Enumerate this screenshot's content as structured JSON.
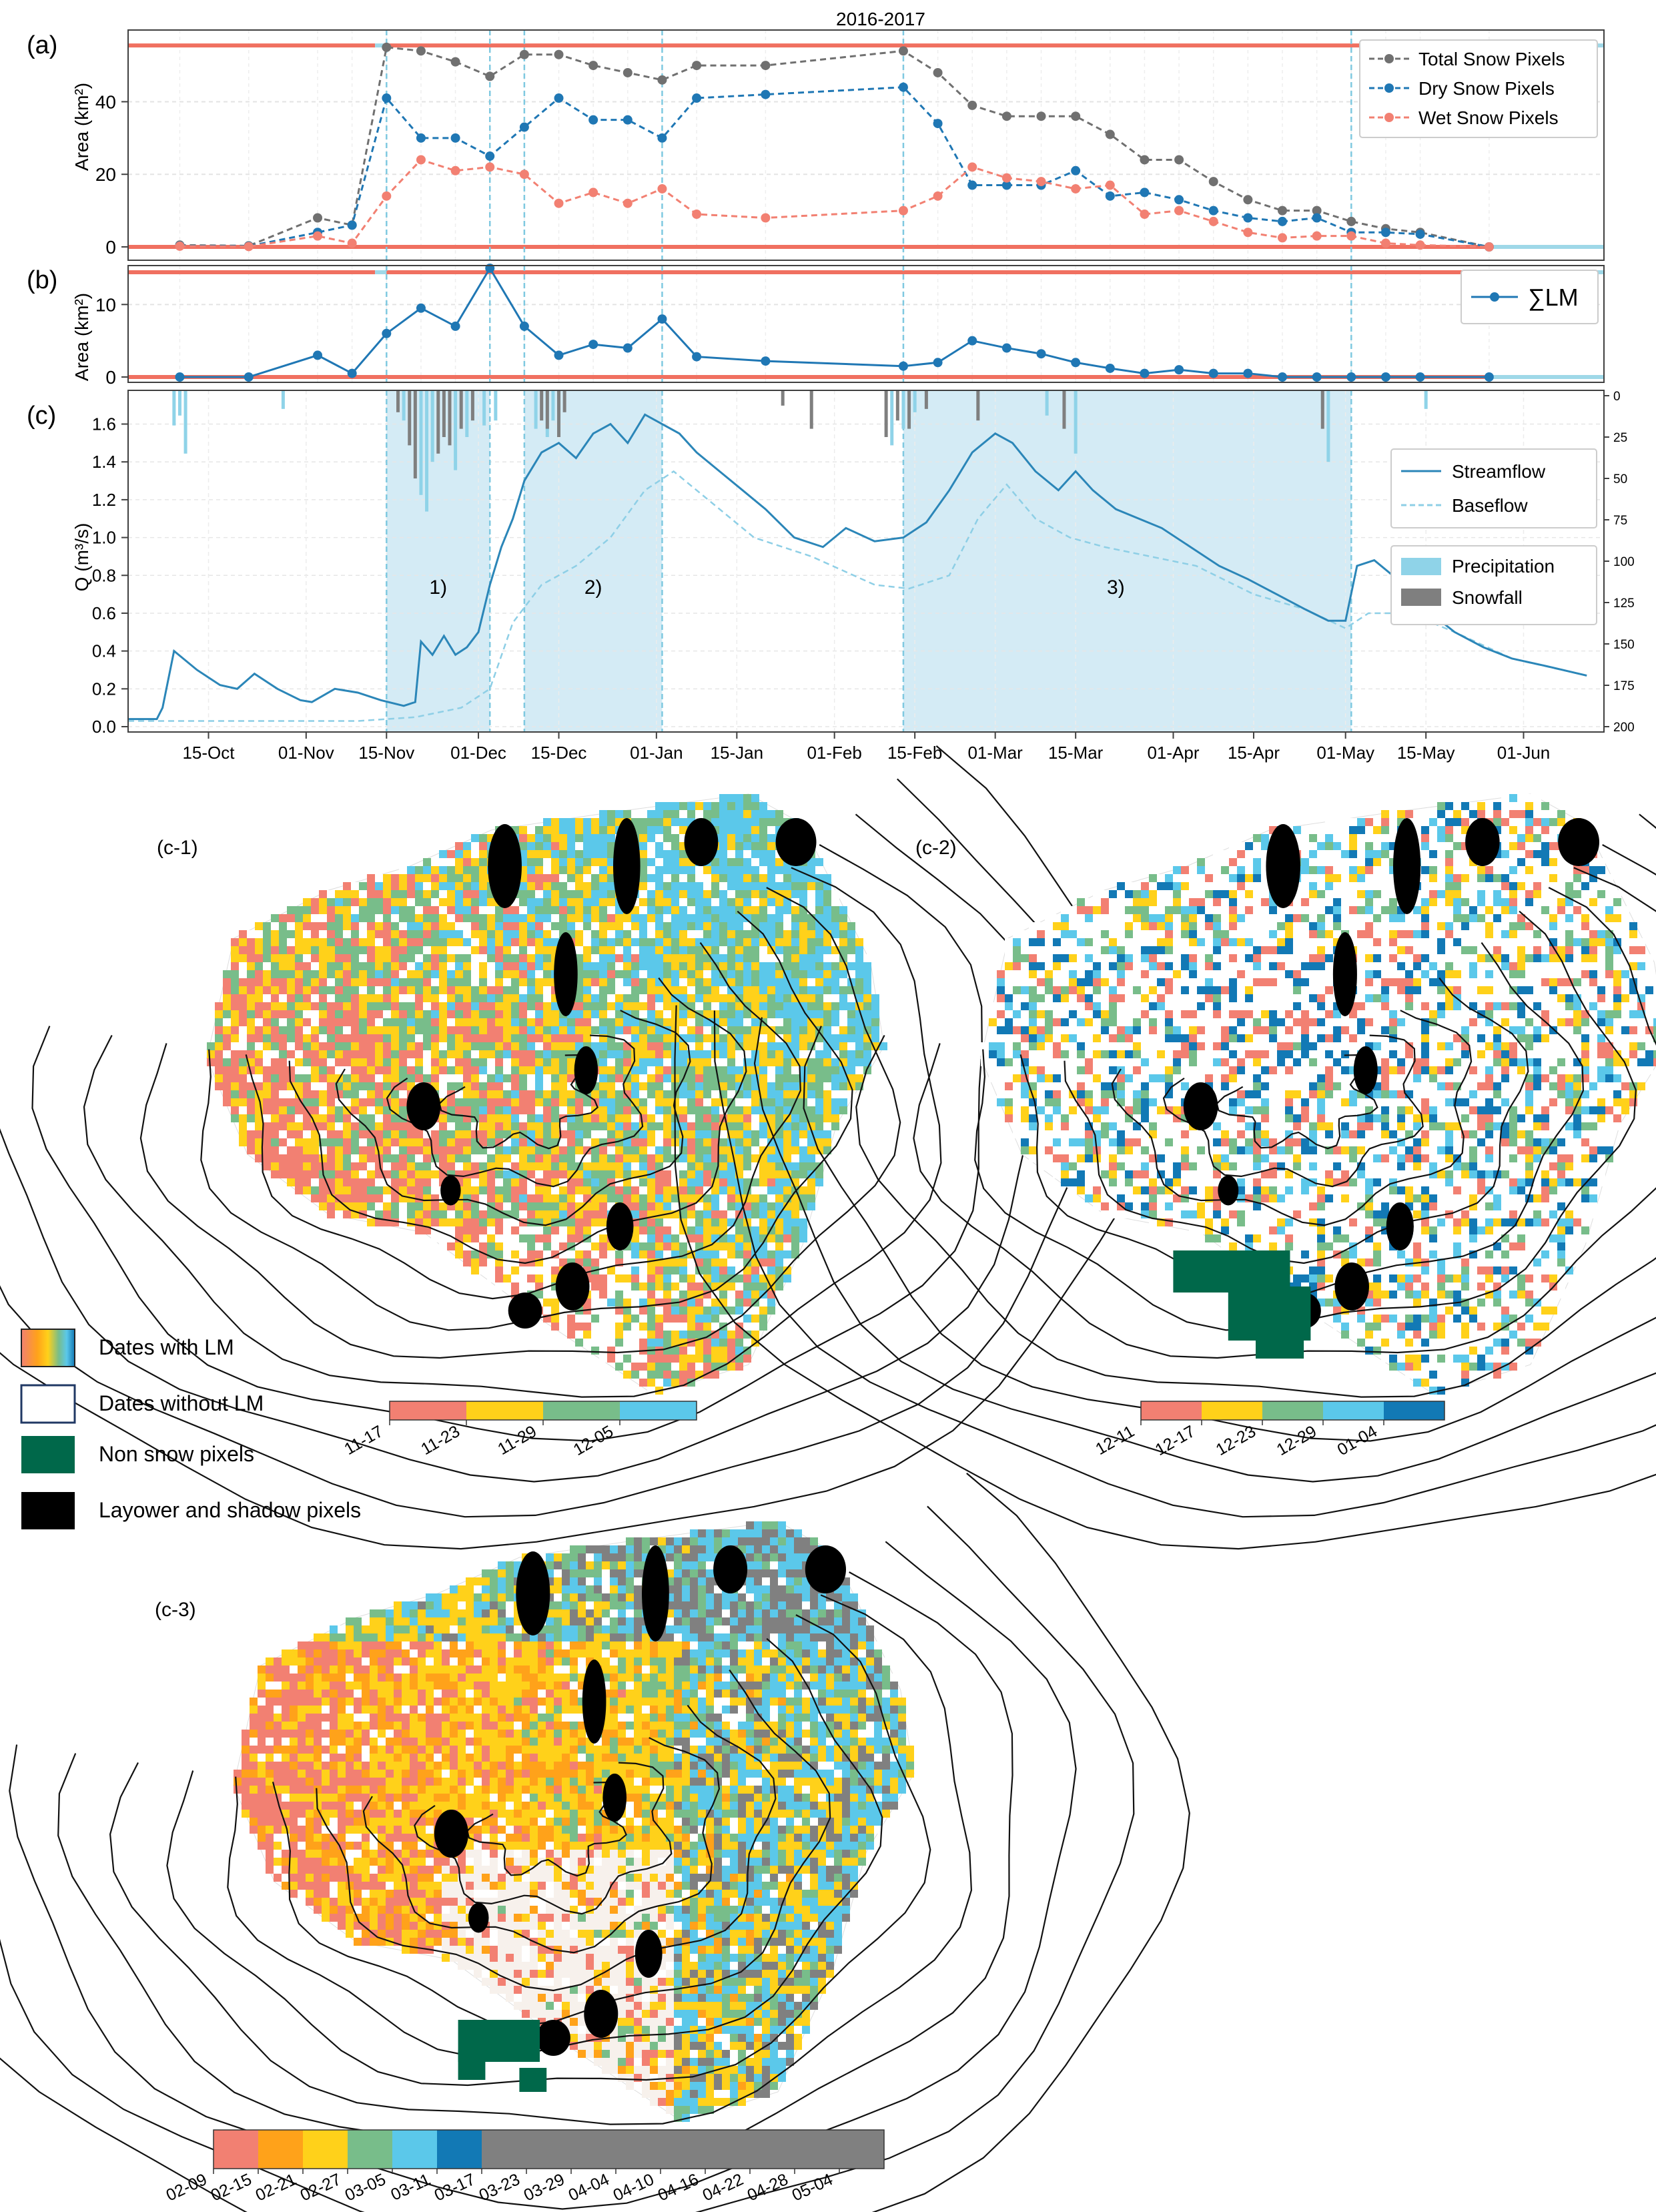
{
  "figure": {
    "title": "2016-2017",
    "panel_labels": [
      "(a)",
      "(b)",
      "(c)"
    ],
    "map_labels": [
      "(c-1)",
      "(c-2)",
      "(c-3)"
    ],
    "period_labels": [
      "1)",
      "2)",
      "3)"
    ]
  },
  "colors": {
    "total": "#707070",
    "dry": "#1f77b4",
    "wet": "#f28072",
    "red_bar": "#f07060",
    "cyan_bar": "#9fd8e8",
    "shade": "#cde8f3",
    "vline": "#7fc9e0",
    "precip": "#8fd3e8",
    "snowfall": "#7f7f7f",
    "streamflow": "#2b86b8",
    "baseflow": "#8ecfe6",
    "non_snow": "#00684a",
    "layover": "#000000"
  },
  "chart_data": [
    {
      "type": "line",
      "panel": "(a)",
      "title": "2016-2017",
      "ylabel": "Area (km²)",
      "ylim": [
        0,
        57
      ],
      "yticks": [
        0,
        20,
        40
      ],
      "grid": true,
      "legend_position": "top-right",
      "x": [
        "2016-10-10",
        "2016-10-22",
        "2016-11-03",
        "2016-11-09",
        "2016-11-15",
        "2016-11-21",
        "2016-11-27",
        "2016-12-03",
        "2016-12-09",
        "2016-12-15",
        "2016-12-21",
        "2016-12-27",
        "2017-01-02",
        "2017-01-08",
        "2017-01-20",
        "2017-02-13",
        "2017-02-19",
        "2017-02-25",
        "2017-03-03",
        "2017-03-09",
        "2017-03-15",
        "2017-03-21",
        "2017-03-27",
        "2017-04-02",
        "2017-04-08",
        "2017-04-14",
        "2017-04-20",
        "2017-04-26",
        "2017-05-02",
        "2017-05-08",
        "2017-05-14",
        "2017-05-26"
      ],
      "series": [
        {
          "name": "Total Snow Pixels",
          "values": [
            0.5,
            0.3,
            8,
            6,
            55,
            54,
            51,
            47,
            53,
            53,
            50,
            48,
            46,
            50,
            50,
            54,
            48,
            39,
            36,
            36,
            36,
            31,
            24,
            24,
            18,
            13,
            10,
            10,
            7,
            5,
            4,
            0
          ]
        },
        {
          "name": "Dry Snow Pixels",
          "values": [
            0.3,
            0.2,
            4,
            6,
            41,
            30,
            30,
            25,
            33,
            41,
            35,
            35,
            30,
            41,
            42,
            44,
            34,
            17,
            17,
            17,
            21,
            14,
            15,
            13,
            10,
            8,
            7,
            8,
            4,
            4,
            3.5,
            0
          ]
        },
        {
          "name": "Wet Snow Pixels",
          "values": [
            0.2,
            0.1,
            3,
            1,
            14,
            24,
            21,
            22,
            20,
            12,
            15,
            12,
            16,
            9,
            8,
            10,
            14,
            22,
            19,
            18,
            16,
            17,
            9,
            10,
            7,
            4,
            2.5,
            3,
            3,
            1,
            0.5,
            0
          ]
        }
      ]
    },
    {
      "type": "line",
      "panel": "(b)",
      "ylabel": "Area (km²)",
      "ylim": [
        0,
        15
      ],
      "yticks": [
        0,
        10
      ],
      "grid": true,
      "legend_position": "top-right",
      "x": [
        "2016-10-10",
        "2016-10-22",
        "2016-11-03",
        "2016-11-09",
        "2016-11-15",
        "2016-11-21",
        "2016-11-27",
        "2016-12-03",
        "2016-12-09",
        "2016-12-15",
        "2016-12-21",
        "2016-12-27",
        "2017-01-02",
        "2017-01-08",
        "2017-01-20",
        "2017-02-13",
        "2017-02-19",
        "2017-02-25",
        "2017-03-03",
        "2017-03-09",
        "2017-03-15",
        "2017-03-21",
        "2017-03-27",
        "2017-04-02",
        "2017-04-08",
        "2017-04-14",
        "2017-04-20",
        "2017-04-26",
        "2017-05-02",
        "2017-05-08",
        "2017-05-14",
        "2017-05-26"
      ],
      "series": [
        {
          "name": "∑LM",
          "values": [
            0,
            0,
            3,
            0.5,
            6,
            9.5,
            7,
            15,
            7,
            3,
            4.5,
            4,
            8,
            2.8,
            2.2,
            1.5,
            2,
            5,
            4,
            3.2,
            2,
            1.2,
            0.5,
            1,
            0.5,
            0.5,
            0,
            0,
            0,
            0,
            0,
            0
          ]
        }
      ]
    },
    {
      "type": "line",
      "panel": "(c)",
      "ylabel": "Q (m³/s)",
      "ylim": [
        0,
        1.75
      ],
      "yticks": [
        0.0,
        0.2,
        0.4,
        0.6,
        0.8,
        1.0,
        1.2,
        1.4,
        1.6
      ],
      "y2ticks": [
        0,
        25,
        50,
        75,
        100,
        125,
        150,
        175,
        200
      ],
      "y2lim": [
        0,
        200
      ],
      "xtick_labels": [
        "15-Oct",
        "01-Nov",
        "15-Nov",
        "01-Dec",
        "15-Dec",
        "01-Jan",
        "15-Jan",
        "01-Feb",
        "15-Feb",
        "01-Mar",
        "15-Mar",
        "01-Apr",
        "15-Apr",
        "01-May",
        "15-May",
        "01-Jun"
      ],
      "xtick_dates": [
        "2016-10-15",
        "2016-11-01",
        "2016-11-15",
        "2016-12-01",
        "2016-12-15",
        "2017-01-01",
        "2017-01-15",
        "2017-02-01",
        "2017-02-15",
        "2017-03-01",
        "2017-03-15",
        "2017-04-01",
        "2017-04-15",
        "2017-05-01",
        "2017-05-15",
        "2017-06-01"
      ],
      "xlim": [
        "2016-10-01",
        "2017-06-15"
      ],
      "shaded_periods": [
        {
          "label": "1)",
          "start": "2016-11-15",
          "end": "2016-12-03"
        },
        {
          "label": "2)",
          "start": "2016-12-09",
          "end": "2017-01-02"
        },
        {
          "label": "3)",
          "start": "2017-02-13",
          "end": "2017-05-02"
        }
      ],
      "series": [
        {
          "name": "Streamflow",
          "x": [
            "2016-10-01",
            "2016-10-06",
            "2016-10-07",
            "2016-10-09",
            "2016-10-13",
            "2016-10-17",
            "2016-10-20",
            "2016-10-23",
            "2016-10-27",
            "2016-10-31",
            "2016-11-02",
            "2016-11-06",
            "2016-11-10",
            "2016-11-14",
            "2016-11-18",
            "2016-11-20",
            "2016-11-21",
            "2016-11-23",
            "2016-11-25",
            "2016-11-27",
            "2016-11-29",
            "2016-12-01",
            "2016-12-03",
            "2016-12-05",
            "2016-12-07",
            "2016-12-09",
            "2016-12-12",
            "2016-12-15",
            "2016-12-18",
            "2016-12-21",
            "2016-12-24",
            "2016-12-27",
            "2016-12-30",
            "2017-01-02",
            "2017-01-05",
            "2017-01-08",
            "2017-01-12",
            "2017-01-16",
            "2017-01-20",
            "2017-01-25",
            "2017-01-30",
            "2017-02-03",
            "2017-02-08",
            "2017-02-13",
            "2017-02-17",
            "2017-02-21",
            "2017-02-25",
            "2017-03-01",
            "2017-03-04",
            "2017-03-08",
            "2017-03-12",
            "2017-03-15",
            "2017-03-18",
            "2017-03-22",
            "2017-03-26",
            "2017-03-30",
            "2017-04-04",
            "2017-04-09",
            "2017-04-14",
            "2017-04-19",
            "2017-04-24",
            "2017-04-28",
            "2017-05-01",
            "2017-05-03",
            "2017-05-06",
            "2017-05-10",
            "2017-05-15",
            "2017-05-20",
            "2017-05-25",
            "2017-05-30",
            "2017-06-05",
            "2017-06-12"
          ],
          "values": [
            0.04,
            0.04,
            0.1,
            0.4,
            0.3,
            0.22,
            0.2,
            0.28,
            0.2,
            0.14,
            0.13,
            0.2,
            0.18,
            0.14,
            0.11,
            0.13,
            0.45,
            0.38,
            0.48,
            0.38,
            0.42,
            0.5,
            0.75,
            0.95,
            1.1,
            1.3,
            1.45,
            1.5,
            1.42,
            1.55,
            1.6,
            1.5,
            1.65,
            1.6,
            1.55,
            1.45,
            1.35,
            1.25,
            1.15,
            1.0,
            0.95,
            1.05,
            0.98,
            1.0,
            1.08,
            1.25,
            1.45,
            1.55,
            1.5,
            1.35,
            1.25,
            1.35,
            1.25,
            1.15,
            1.1,
            1.05,
            0.95,
            0.85,
            0.78,
            0.7,
            0.62,
            0.56,
            0.56,
            0.85,
            0.88,
            0.78,
            0.62,
            0.5,
            0.42,
            0.36,
            0.32,
            0.27
          ]
        },
        {
          "name": "Baseflow",
          "x": [
            "2016-10-01",
            "2016-11-10",
            "2016-11-20",
            "2016-11-28",
            "2016-12-03",
            "2016-12-07",
            "2016-12-12",
            "2016-12-18",
            "2016-12-24",
            "2016-12-30",
            "2017-01-04",
            "2017-01-10",
            "2017-01-18",
            "2017-01-28",
            "2017-02-08",
            "2017-02-14",
            "2017-02-21",
            "2017-02-26",
            "2017-03-03",
            "2017-03-08",
            "2017-03-14",
            "2017-03-20",
            "2017-03-28",
            "2017-04-05",
            "2017-04-15",
            "2017-04-24",
            "2017-05-01",
            "2017-05-05",
            "2017-05-12",
            "2017-05-20",
            "2017-05-30",
            "2017-06-12"
          ],
          "values": [
            0.03,
            0.03,
            0.05,
            0.1,
            0.2,
            0.55,
            0.75,
            0.85,
            1.0,
            1.25,
            1.35,
            1.2,
            1.0,
            0.9,
            0.75,
            0.73,
            0.8,
            1.1,
            1.28,
            1.1,
            1.0,
            0.95,
            0.9,
            0.85,
            0.7,
            0.62,
            0.52,
            0.6,
            0.6,
            0.5,
            0.36,
            0.27
          ]
        }
      ],
      "bars": [
        {
          "name": "Precipitation",
          "x": [
            "2016-10-09",
            "2016-10-10",
            "2016-10-11",
            "2016-10-28",
            "2016-11-18",
            "2016-11-21",
            "2016-11-22",
            "2016-11-23",
            "2016-11-27",
            "2016-11-29",
            "2016-12-02",
            "2016-12-04",
            "2016-12-11",
            "2016-12-13",
            "2016-12-14",
            "2016-12-15",
            "2017-02-11",
            "2017-02-13",
            "2017-02-15",
            "2017-03-10",
            "2017-03-15",
            "2017-04-27",
            "2017-04-28",
            "2017-05-15"
          ],
          "values": [
            18,
            12,
            35,
            8,
            15,
            60,
            70,
            40,
            45,
            25,
            18,
            15,
            20,
            25,
            15,
            10,
            30,
            20,
            10,
            12,
            35,
            8,
            40,
            8
          ]
        },
        {
          "name": "Snowfall",
          "x": [
            "2016-11-17",
            "2016-11-19",
            "2016-11-20",
            "2016-11-24",
            "2016-11-25",
            "2016-11-26",
            "2016-11-28",
            "2016-11-30",
            "2016-12-12",
            "2016-12-13",
            "2016-12-15",
            "2016-12-16",
            "2017-01-23",
            "2017-01-28",
            "2017-02-10",
            "2017-02-12",
            "2017-02-14",
            "2017-02-17",
            "2017-02-26",
            "2017-03-13",
            "2017-04-27"
          ],
          "values": [
            10,
            30,
            50,
            35,
            25,
            30,
            20,
            15,
            15,
            20,
            25,
            10,
            6,
            20,
            25,
            15,
            20,
            8,
            15,
            20,
            20
          ]
        }
      ],
      "legend_position": "right"
    }
  ],
  "legends": {
    "a": [
      "Total Snow Pixels",
      "Dry Snow Pixels",
      "Wet Snow Pixels"
    ],
    "b": "∑LM",
    "c1": [
      "Streamflow",
      "Baseflow"
    ],
    "c2": [
      "Precipitation",
      "Snowfall"
    ]
  },
  "maps": [
    {
      "label": "(c-1)",
      "colorbar": {
        "colors": [
          "#f28072",
          "#ffd11a",
          "#78bd8a",
          "#5bc8ea"
        ],
        "ticks": [
          "11-17",
          "11-23",
          "11-29",
          "12-05"
        ]
      }
    },
    {
      "label": "(c-2)",
      "colorbar": {
        "colors": [
          "#f28072",
          "#ffd11a",
          "#78bd8a",
          "#5bc8ea",
          "#1279b5"
        ],
        "ticks": [
          "12-11",
          "12-17",
          "12-23",
          "12-29",
          "01-04"
        ]
      }
    },
    {
      "label": "(c-3)",
      "colorbar": {
        "colors": [
          "#f28072",
          "#ffa21a",
          "#ffd11a",
          "#78bd8a",
          "#5bc8ea",
          "#1279b5",
          "#808080",
          "#808080",
          "#808080",
          "#808080",
          "#808080",
          "#808080",
          "#808080",
          "#808080",
          "#808080"
        ],
        "ticks": [
          "02-09",
          "02-15",
          "02-21",
          "02-27",
          "03-05",
          "03-11",
          "03-17",
          "03-23",
          "03-29",
          "04-04",
          "04-10",
          "04-16",
          "04-22",
          "04-28",
          "05-04"
        ]
      }
    }
  ],
  "map_legend": {
    "items": [
      "Dates with LM",
      "Dates without LM",
      "Non snow pixels",
      "Layower and shadow pixels"
    ]
  }
}
